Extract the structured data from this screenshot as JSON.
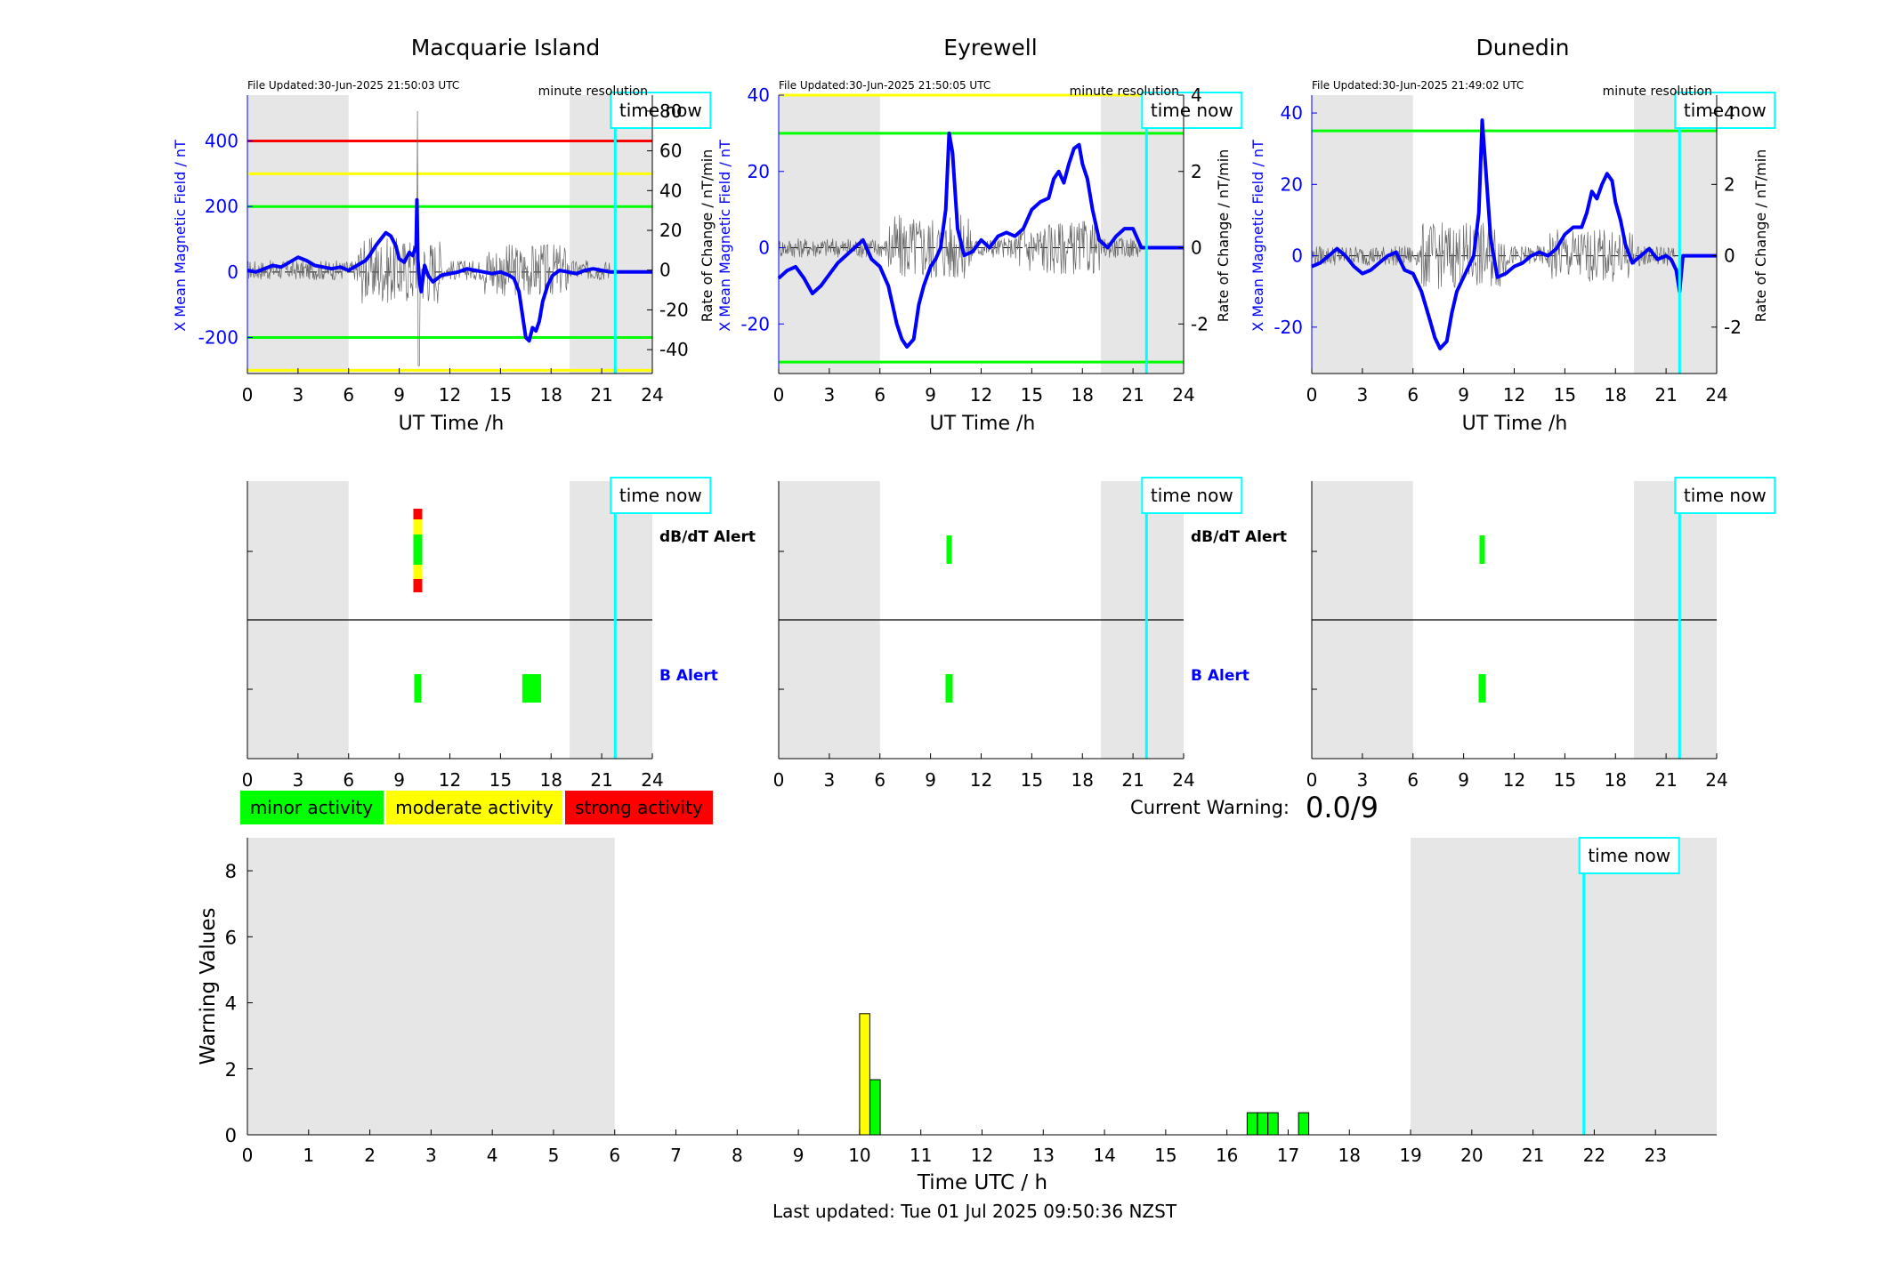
{
  "chart_data": [
    {
      "type": "line",
      "title": "Macquarie Island",
      "file_updated": "File Updated:30-Jun-2025 21:50:03 UTC",
      "resolution_label": "minute resolution",
      "xlabel": "UT Time /h",
      "ylabel": "X Mean Magnetic Field / nT",
      "y2label": "Rate of Change / nT/min",
      "xlim": [
        0,
        24
      ],
      "xticks": [
        "0",
        "3",
        "6",
        "9",
        "12",
        "15",
        "18",
        "21",
        "24"
      ],
      "ylim": [
        -310,
        540
      ],
      "yticks": [
        -200,
        0,
        200,
        400
      ],
      "ytick_labels": [
        "-200",
        "0",
        "200",
        "400"
      ],
      "y2lim": [
        -52,
        88
      ],
      "y2ticks": [
        -40,
        -20,
        0,
        20,
        40,
        60,
        80
      ],
      "y2tick_labels": [
        "-40",
        "-20",
        "0",
        "20",
        "40",
        "60",
        "80"
      ],
      "night_shading": [
        [
          0,
          6
        ],
        [
          19.1,
          24
        ]
      ],
      "threshold_lines": [
        {
          "value": 400,
          "color": "#ff0000"
        },
        {
          "value": 300,
          "color": "#ffff00"
        },
        {
          "value": 200,
          "color": "#00ff00"
        },
        {
          "value": -200,
          "color": "#00ff00"
        },
        {
          "value": -300,
          "color": "#ffff00"
        }
      ],
      "time_now": 21.8,
      "time_now_label": "time now",
      "series": [
        {
          "color": "#0000ff",
          "x": [
            0,
            0.5,
            1,
            1.5,
            2,
            2.5,
            3,
            3.5,
            4,
            4.5,
            5,
            5.5,
            6,
            6.5,
            7,
            7.3,
            7.6,
            7.9,
            8.2,
            8.5,
            8.8,
            9,
            9.3,
            9.6,
            9.8,
            10.0,
            10.05,
            10.1,
            10.2,
            10.3,
            10.5,
            10.7,
            11,
            11.5,
            12,
            12.5,
            13,
            13.5,
            14,
            14.5,
            15,
            15.5,
            15.8,
            16.1,
            16.3,
            16.5,
            16.7,
            16.9,
            17.1,
            17.3,
            17.5,
            17.8,
            18.1,
            18.5,
            19,
            19.5,
            20,
            20.5,
            21,
            21.5,
            21.8,
            22,
            22.5,
            23,
            23.5,
            24
          ],
          "y": [
            5,
            0,
            10,
            20,
            15,
            30,
            45,
            35,
            20,
            15,
            10,
            15,
            5,
            20,
            35,
            55,
            80,
            100,
            120,
            110,
            80,
            40,
            30,
            60,
            50,
            80,
            220,
            40,
            -30,
            -60,
            20,
            -10,
            -30,
            -10,
            -5,
            0,
            10,
            5,
            0,
            -5,
            0,
            -10,
            -20,
            -60,
            -130,
            -200,
            -210,
            -170,
            -180,
            -150,
            -90,
            -40,
            -10,
            5,
            0,
            -5,
            5,
            10,
            5,
            0,
            0,
            0,
            0,
            0,
            0,
            0
          ]
        }
      ]
    },
    {
      "type": "line",
      "title": "Eyrewell",
      "file_updated": "File Updated:30-Jun-2025 21:50:05 UTC",
      "resolution_label": "minute resolution",
      "xlabel": "UT Time /h",
      "ylabel": "X Mean Magnetic Field / nT",
      "y2label": "Rate of Change / nT/min",
      "xlim": [
        0,
        24
      ],
      "xticks": [
        "0",
        "3",
        "6",
        "9",
        "12",
        "15",
        "18",
        "21",
        "24"
      ],
      "ylim": [
        -33,
        40
      ],
      "yticks": [
        -20,
        0,
        20,
        40
      ],
      "ytick_labels": [
        "-20",
        "0",
        "20",
        "40"
      ],
      "y2lim": [
        -3.3,
        4
      ],
      "y2ticks": [
        -2,
        0,
        2,
        4
      ],
      "y2tick_labels": [
        "-2",
        "0",
        "2",
        "4"
      ],
      "night_shading": [
        [
          0,
          6
        ],
        [
          19.1,
          24
        ]
      ],
      "threshold_lines": [
        {
          "value": 40,
          "color": "#ffff00"
        },
        {
          "value": 30,
          "color": "#00ff00"
        },
        {
          "value": -30,
          "color": "#00ff00"
        }
      ],
      "time_now": 21.8,
      "time_now_label": "time now",
      "series": [
        {
          "color": "#0000ff",
          "x": [
            0,
            0.5,
            1,
            1.5,
            2,
            2.5,
            3,
            3.5,
            4,
            4.5,
            5,
            5.5,
            6,
            6.5,
            7,
            7.3,
            7.6,
            8,
            8.3,
            8.6,
            9,
            9.3,
            9.6,
            9.9,
            10.1,
            10.3,
            10.6,
            11,
            11.5,
            12,
            12.5,
            13,
            13.5,
            14,
            14.5,
            15,
            15.5,
            16,
            16.3,
            16.6,
            16.9,
            17.2,
            17.5,
            17.8,
            18,
            18.3,
            18.6,
            19,
            19.5,
            20,
            20.5,
            21,
            21.3,
            21.5,
            22,
            22.5,
            23,
            23.5,
            24
          ],
          "y": [
            -8,
            -6,
            -5,
            -8,
            -12,
            -10,
            -7,
            -4,
            -2,
            0,
            2,
            -3,
            -5,
            -10,
            -20,
            -24,
            -26,
            -24,
            -15,
            -10,
            -5,
            -3,
            0,
            10,
            30,
            25,
            5,
            -2,
            -1,
            2,
            0,
            3,
            4,
            3,
            5,
            10,
            12,
            13,
            18,
            20,
            17,
            22,
            26,
            27,
            22,
            18,
            10,
            2,
            0,
            3,
            5,
            5,
            2,
            0,
            0,
            0,
            0,
            0,
            0
          ]
        }
      ]
    },
    {
      "type": "line",
      "title": "Dunedin",
      "file_updated": "File Updated:30-Jun-2025 21:49:02 UTC",
      "resolution_label": "minute resolution",
      "xlabel": "UT Time /h",
      "ylabel": "X Mean Magnetic Field / nT",
      "y2label": "Rate of Change / nT/min",
      "xlim": [
        0,
        24
      ],
      "xticks": [
        "0",
        "3",
        "6",
        "9",
        "12",
        "15",
        "18",
        "21",
        "24"
      ],
      "ylim": [
        -33,
        45
      ],
      "yticks": [
        -20,
        0,
        20,
        40
      ],
      "ytick_labels": [
        "-20",
        "0",
        "20",
        "40"
      ],
      "y2lim": [
        -3.3,
        4.5
      ],
      "y2ticks": [
        -2,
        0,
        2,
        4
      ],
      "y2tick_labels": [
        "-2",
        "0",
        "2",
        "4"
      ],
      "night_shading": [
        [
          0,
          6
        ],
        [
          19.1,
          24
        ]
      ],
      "threshold_lines": [
        {
          "value": 35,
          "color": "#00ff00"
        }
      ],
      "time_now": 21.8,
      "time_now_label": "time now",
      "series": [
        {
          "color": "#0000ff",
          "x": [
            0,
            0.5,
            1,
            1.5,
            2,
            2.5,
            3,
            3.5,
            4,
            4.5,
            5,
            5.5,
            6,
            6.5,
            7,
            7.3,
            7.6,
            8,
            8.3,
            8.6,
            9,
            9.3,
            9.6,
            9.9,
            10.1,
            10.3,
            10.6,
            11,
            11.5,
            12,
            12.5,
            13,
            13.5,
            14,
            14.5,
            15,
            15.5,
            16,
            16.3,
            16.6,
            16.9,
            17.2,
            17.5,
            17.8,
            18,
            18.3,
            18.6,
            19,
            19.5,
            20,
            20.5,
            21,
            21.3,
            21.6,
            21.8,
            22,
            22.5,
            23,
            23.5,
            24
          ],
          "y": [
            -3,
            -2,
            0,
            2,
            0,
            -3,
            -5,
            -4,
            -2,
            0,
            1,
            -4,
            -5,
            -10,
            -18,
            -23,
            -26,
            -24,
            -16,
            -10,
            -6,
            -3,
            0,
            12,
            38,
            25,
            5,
            -6,
            -5,
            -3,
            -2,
            0,
            1,
            0,
            2,
            6,
            8,
            8,
            12,
            18,
            16,
            20,
            23,
            21,
            15,
            10,
            3,
            -2,
            0,
            2,
            -1,
            0,
            -1,
            -4,
            -10,
            0,
            0,
            0,
            0,
            0
          ]
        }
      ]
    },
    {
      "type": "bar",
      "title": "",
      "xlabel": "Time UTC / h",
      "ylabel": "Warning Values",
      "xlim": [
        0,
        24
      ],
      "xticks": [
        "0",
        "1",
        "2",
        "3",
        "4",
        "5",
        "6",
        "7",
        "8",
        "9",
        "10",
        "11",
        "12",
        "13",
        "14",
        "15",
        "16",
        "17",
        "18",
        "19",
        "20",
        "21",
        "22",
        "23"
      ],
      "ylim": [
        0,
        9
      ],
      "yticks": [
        "0",
        "2",
        "4",
        "6",
        "8"
      ],
      "night_shading": [
        [
          0,
          6
        ],
        [
          19,
          24
        ]
      ],
      "time_now": 21.83,
      "time_now_label": "time now",
      "bars": [
        {
          "x": 10.0,
          "value": 3.67,
          "color": "#ffff00"
        },
        {
          "x": 10.17,
          "value": 1.67,
          "color": "#00ff00"
        },
        {
          "x": 16.33,
          "value": 0.67,
          "color": "#00ff00"
        },
        {
          "x": 16.5,
          "value": 0.67,
          "color": "#00ff00"
        },
        {
          "x": 16.67,
          "value": 0.67,
          "color": "#00ff00"
        },
        {
          "x": 17.17,
          "value": 0.67,
          "color": "#00ff00"
        }
      ]
    }
  ],
  "alert_panels": [
    {
      "station": "Macquarie Island",
      "dbdt_label": "dB/dT Alert",
      "b_label": "B Alert",
      "xticks": [
        "0",
        "3",
        "6",
        "9",
        "12",
        "15",
        "18",
        "21",
        "24"
      ],
      "time_now": 21.8,
      "time_now_label": "time now",
      "dbdt_events": [
        {
          "x": 10.1,
          "levels": [
            "#ff0000",
            "#ffff00",
            "#00ff00",
            "#ffff00",
            "#ff0000"
          ]
        }
      ],
      "b_events": [
        {
          "x": 10.1,
          "color": "#00ff00"
        },
        {
          "x": 16.5,
          "color": "#00ff00"
        },
        {
          "x": 16.8,
          "color": "#00ff00"
        },
        {
          "x": 17.2,
          "color": "#00ff00"
        }
      ]
    },
    {
      "station": "Eyrewell",
      "dbdt_label": "dB/dT Alert",
      "b_label": "B Alert",
      "xticks": [
        "0",
        "3",
        "6",
        "9",
        "12",
        "15",
        "18",
        "21",
        "24"
      ],
      "time_now": 21.8,
      "time_now_label": "time now",
      "dbdt_events": [
        {
          "x": 10.1,
          "levels": [
            "#00ff00"
          ]
        }
      ],
      "b_events": [
        {
          "x": 10.1,
          "color": "#00ff00"
        }
      ]
    },
    {
      "station": "Dunedin",
      "dbdt_label": "",
      "b_label": "",
      "xticks": [
        "0",
        "3",
        "6",
        "9",
        "12",
        "15",
        "18",
        "21",
        "24"
      ],
      "time_now": 21.8,
      "time_now_label": "time now",
      "dbdt_events": [
        {
          "x": 10.1,
          "levels": [
            "#00ff00"
          ]
        }
      ],
      "b_events": [
        {
          "x": 10.1,
          "color": "#00ff00"
        }
      ]
    }
  ],
  "legend": [
    {
      "label": "minor activity",
      "color": "#00ff00"
    },
    {
      "label": "moderate activity",
      "color": "#ffff00"
    },
    {
      "label": "strong activity",
      "color": "#ff0000"
    }
  ],
  "current_warning": {
    "label": "Current Warning:",
    "value": "0.0/9"
  },
  "footer": {
    "last_updated": "Last updated: Tue 01 Jul 2025 09:50:36 NZST"
  }
}
